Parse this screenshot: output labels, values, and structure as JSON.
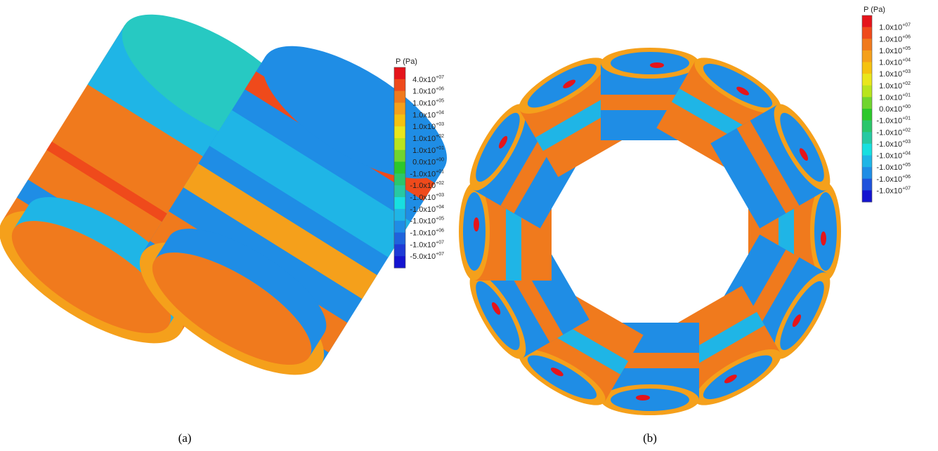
{
  "panels": [
    {
      "caption": "(a)",
      "legend": {
        "title": "P (Pa)",
        "colors": [
          "#e5141b",
          "#ef4a1b",
          "#f07a1d",
          "#f5a01b",
          "#f5c210",
          "#e9e61c",
          "#b8e41e",
          "#70d52f",
          "#2cc82b",
          "#2bc66b",
          "#27c9a2",
          "#18dfe0",
          "#1fb5e6",
          "#1f8de5",
          "#1f63dc",
          "#1e3bd6",
          "#1414d0"
        ],
        "labels": [
          {
            "mantissa": "4.0x10",
            "exponent": "+07"
          },
          {
            "mantissa": "1.0x10",
            "exponent": "+06"
          },
          {
            "mantissa": "1.0x10",
            "exponent": "+05"
          },
          {
            "mantissa": "1.0x10",
            "exponent": "+04"
          },
          {
            "mantissa": "1.0x10",
            "exponent": "+03"
          },
          {
            "mantissa": "1.0x10",
            "exponent": "+02"
          },
          {
            "mantissa": "1.0x10",
            "exponent": "+01"
          },
          {
            "mantissa": "0.0x10",
            "exponent": "+00"
          },
          {
            "mantissa": "-1.0x10",
            "exponent": "+01"
          },
          {
            "mantissa": "-1.0x10",
            "exponent": "+02"
          },
          {
            "mantissa": "-1.0x10",
            "exponent": "+03"
          },
          {
            "mantissa": "-1.0x10",
            "exponent": "+04"
          },
          {
            "mantissa": "-1.0x10",
            "exponent": "+05"
          },
          {
            "mantissa": "-1.0x10",
            "exponent": "+06"
          },
          {
            "mantissa": "-1.0x10",
            "exponent": "+07"
          },
          {
            "mantissa": "-5.0x10",
            "exponent": "+07"
          }
        ]
      }
    },
    {
      "caption": "(b)",
      "legend": {
        "title": "P (Pa)",
        "colors": [
          "#e5141b",
          "#ef4a1b",
          "#f07a1d",
          "#f5a01b",
          "#f5c210",
          "#e9e61c",
          "#b8e41e",
          "#70d52f",
          "#2cc82b",
          "#2bc66b",
          "#27c9a2",
          "#18dfe0",
          "#1fb5e6",
          "#1f8de5",
          "#1f53dc",
          "#1414d0"
        ],
        "labels": [
          {
            "mantissa": "1.0x10",
            "exponent": "+07"
          },
          {
            "mantissa": "1.0x10",
            "exponent": "+06"
          },
          {
            "mantissa": "1.0x10",
            "exponent": "+05"
          },
          {
            "mantissa": "1.0x10",
            "exponent": "+04"
          },
          {
            "mantissa": "1.0x10",
            "exponent": "+03"
          },
          {
            "mantissa": "1.0x10",
            "exponent": "+02"
          },
          {
            "mantissa": "1.0x10",
            "exponent": "+01"
          },
          {
            "mantissa": "0.0x10",
            "exponent": "+00"
          },
          {
            "mantissa": "-1.0x10",
            "exponent": "+01"
          },
          {
            "mantissa": "-1.0x10",
            "exponent": "+02"
          },
          {
            "mantissa": "-1.0x10",
            "exponent": "+03"
          },
          {
            "mantissa": "-1.0x10",
            "exponent": "+04"
          },
          {
            "mantissa": "-1.0x10",
            "exponent": "+05"
          },
          {
            "mantissa": "-1.0x10",
            "exponent": "+06"
          },
          {
            "mantissa": "-1.0x10",
            "exponent": "+07"
          }
        ]
      }
    }
  ]
}
